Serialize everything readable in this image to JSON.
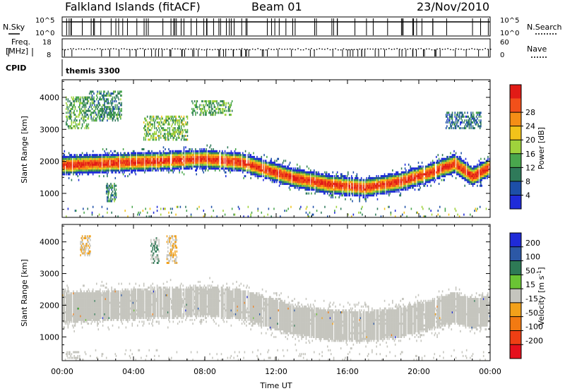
{
  "header": {
    "station": "Falkland Islands (fitACF)",
    "beam": "Beam 01",
    "date": "23/Nov/2010"
  },
  "panels": {
    "nsky": {
      "left_label": "N.Sky",
      "right_label": "N.Search",
      "ticks": [
        "10^5",
        "10^0"
      ]
    },
    "freq": {
      "left_label_line1": "Freq.",
      "left_label_line2": "[MHz]",
      "left_ticks": [
        "18",
        "8"
      ],
      "right_label": "Nave",
      "right_ticks": [
        "60",
        "0"
      ]
    },
    "cpid": {
      "label": "CPID",
      "value": "themis 3300"
    }
  },
  "colors": {
    "power": [
      "#1f2bd8",
      "#1d4fa8",
      "#2f7a5a",
      "#49a64d",
      "#9fd23c",
      "#f2c31a",
      "#f58e16",
      "#f2501a",
      "#e11b16"
    ],
    "velocity": [
      "#1f2bd8",
      "#2c58a6",
      "#2e7a56",
      "#6ac434",
      "#c5c5be",
      "#f2a11a",
      "#f27a12",
      "#ee3f14",
      "#e6101d"
    ],
    "ground_scatter": "#c5c5be"
  },
  "chart_data": [
    {
      "type": "heatmap",
      "name": "power-panel",
      "xlabel": "",
      "ylabel": "Slant Range [km]",
      "x_unit": "hours UT",
      "xlim": [
        0,
        24
      ],
      "ylim": [
        250,
        4550
      ],
      "yticks": [
        "1000",
        "2000",
        "3000",
        "4000"
      ],
      "colorbar": {
        "label": "Power [dB]",
        "vmin": 0,
        "vmax": 32,
        "tick_labels": [
          "4",
          "8",
          "12",
          "16",
          "20",
          "24",
          "28"
        ]
      },
      "features": [
        {
          "kind": "main-band",
          "t": [
            0,
            2,
            4,
            6,
            8,
            10,
            11.5,
            13,
            15,
            17,
            19,
            20.5,
            22,
            23,
            24
          ],
          "center": [
            1850,
            1900,
            1950,
            2000,
            2050,
            1950,
            1700,
            1450,
            1250,
            1150,
            1350,
            1600,
            1900,
            1500,
            1800
          ],
          "half_width": 260,
          "peak_power": 29
        },
        {
          "kind": "patch",
          "t": [
            0.2,
            1.5
          ],
          "range": [
            3000,
            4000
          ],
          "power": 12
        },
        {
          "kind": "patch",
          "t": [
            1.5,
            3.3
          ],
          "range": [
            3200,
            4200
          ],
          "power": 10
        },
        {
          "kind": "patch",
          "t": [
            4.5,
            7.0
          ],
          "range": [
            2600,
            3400
          ],
          "power": 14
        },
        {
          "kind": "patch",
          "t": [
            7.2,
            9.5
          ],
          "range": [
            3400,
            3900
          ],
          "power": 12
        },
        {
          "kind": "patch",
          "t": [
            2.4,
            3.0
          ],
          "range": [
            700,
            1300
          ],
          "power": 10
        },
        {
          "kind": "patch",
          "t": [
            21.5,
            23.5
          ],
          "range": [
            3000,
            3500
          ],
          "power": 8
        }
      ]
    },
    {
      "type": "heatmap",
      "name": "velocity-panel",
      "xlabel": "Time UT",
      "ylabel": "Slant Range [km]",
      "x_unit": "hours UT",
      "xlim": [
        0,
        24
      ],
      "ylim": [
        250,
        4550
      ],
      "yticks": [
        "1000",
        "2000",
        "3000",
        "4000"
      ],
      "xticks": [
        "00:00",
        "04:00",
        "08:00",
        "12:00",
        "16:00",
        "20:00",
        "00:00"
      ],
      "colorbar": {
        "label_main": "Velocity [m s",
        "label_sup": "-1",
        "label_end": "]",
        "tick_labels": [
          "200",
          "100",
          "50",
          "15",
          "-15",
          "-50",
          "-100",
          "-200"
        ]
      },
      "features": [
        {
          "kind": "ground-band",
          "t": [
            0,
            2,
            4,
            6,
            8,
            10,
            11.5,
            13,
            15,
            17,
            19,
            20.5,
            22,
            23,
            24
          ],
          "center": [
            1900,
            1950,
            2000,
            2050,
            2100,
            2000,
            1750,
            1500,
            1350,
            1300,
            1450,
            1650,
            1900,
            1700,
            1850
          ],
          "half_width": 420
        },
        {
          "kind": "patch",
          "t": [
            1.0,
            1.6
          ],
          "range": [
            3500,
            4200
          ],
          "velocity": -80
        },
        {
          "kind": "patch",
          "t": [
            5.8,
            6.4
          ],
          "range": [
            3300,
            4200
          ],
          "velocity": -60
        },
        {
          "kind": "patch",
          "t": [
            4.9,
            5.4
          ],
          "range": [
            3300,
            4100
          ],
          "velocity": 40
        },
        {
          "kind": "patch",
          "t": [
            0.2,
            1.0
          ],
          "range": [
            300,
            500
          ],
          "velocity": -40
        }
      ]
    }
  ]
}
